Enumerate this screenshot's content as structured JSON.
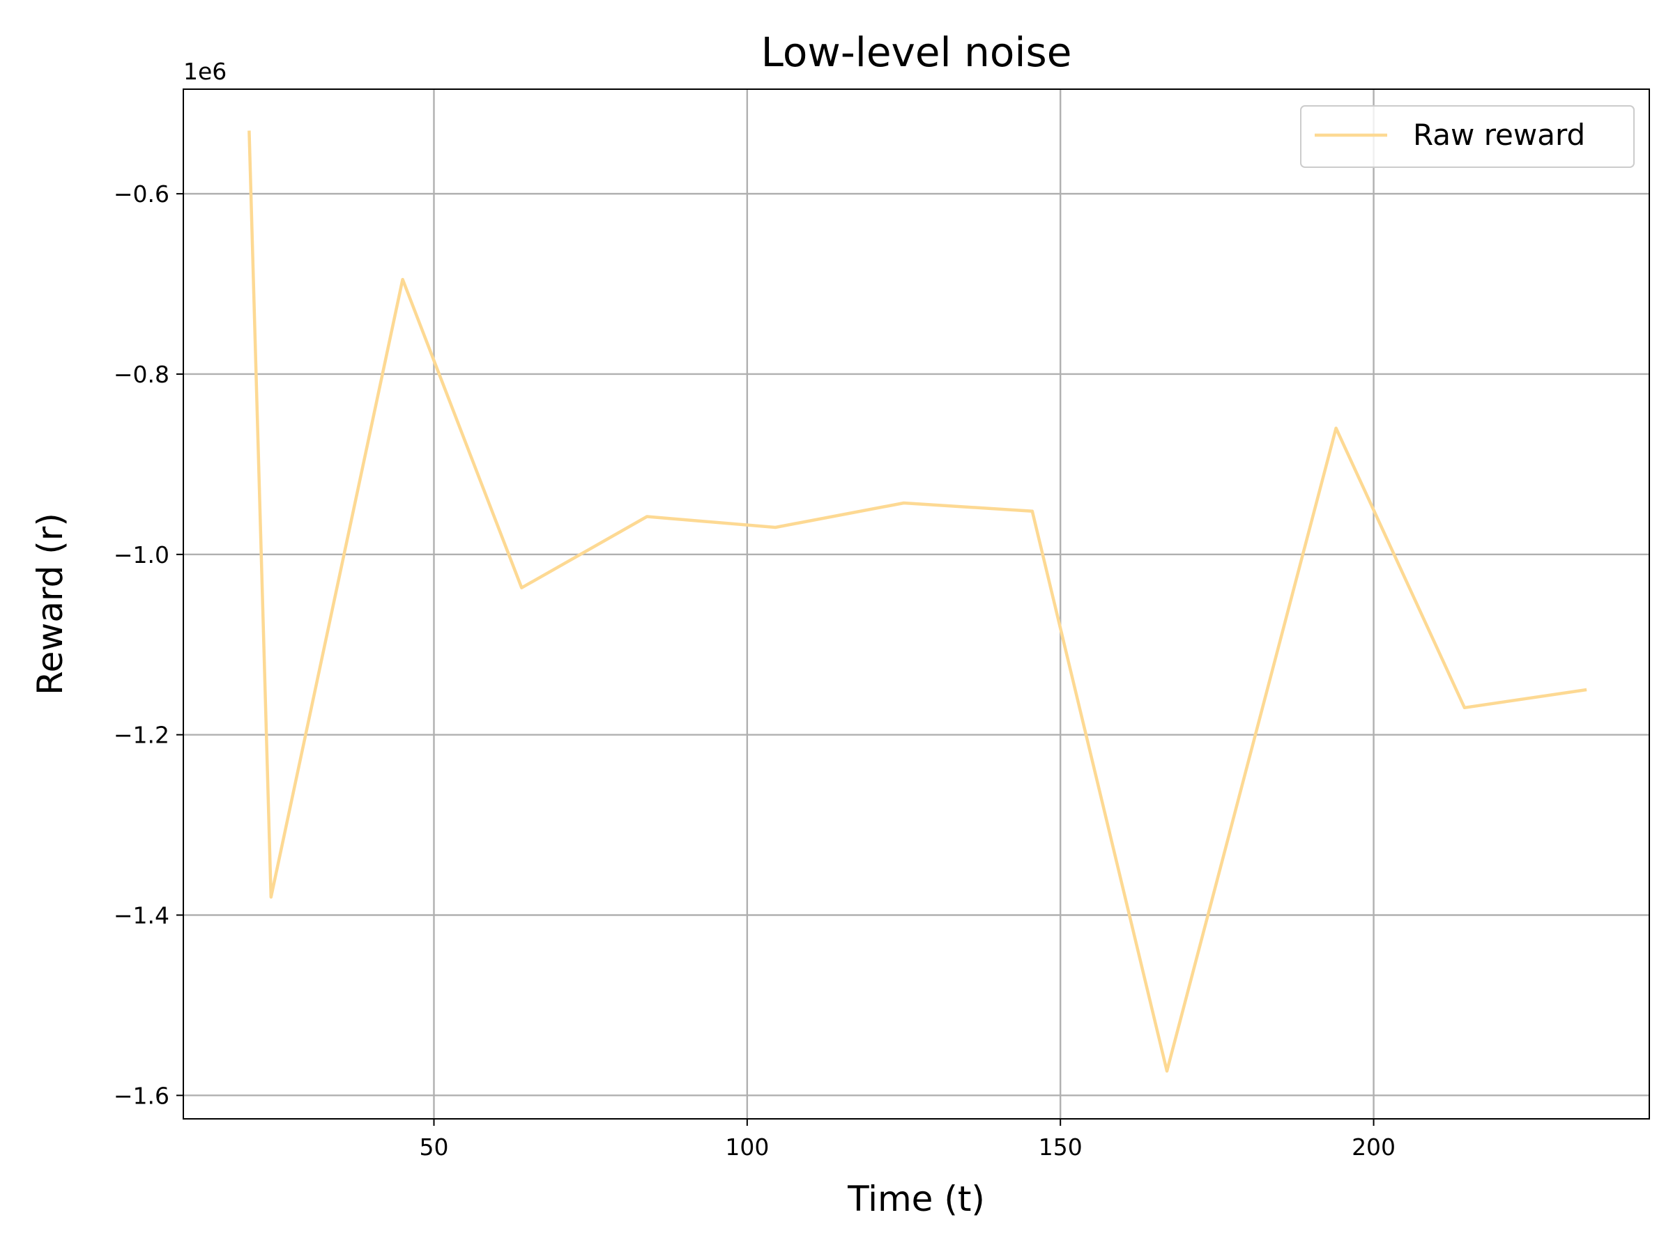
{
  "chart_data": {
    "type": "line",
    "title": "Low-level noise",
    "xlabel": "Time (t)",
    "ylabel": "Reward (r)",
    "y_offset_label": "1e6",
    "xlim": [
      10,
      244
    ],
    "ylim": [
      -1.626,
      -0.484
    ],
    "y_scale": 1000000,
    "grid": true,
    "legend_position": "upper right",
    "x_ticks": [
      {
        "value": 50,
        "label": "50"
      },
      {
        "value": 100,
        "label": "100"
      },
      {
        "value": 150,
        "label": "150"
      },
      {
        "value": 200,
        "label": "200"
      }
    ],
    "y_ticks": [
      {
        "value": -0.6,
        "label": "−0.6"
      },
      {
        "value": -0.8,
        "label": "−0.8"
      },
      {
        "value": -1.0,
        "label": "−1.0"
      },
      {
        "value": -1.2,
        "label": "−1.2"
      },
      {
        "value": -1.4,
        "label": "−1.4"
      },
      {
        "value": -1.6,
        "label": "−1.6"
      }
    ],
    "series": [
      {
        "name": "Raw reward",
        "color": "#fdd993",
        "x": [
          20.5,
          24,
          45,
          64,
          84,
          104.5,
          125,
          145.5,
          167,
          194,
          214.5,
          234
        ],
        "y": [
          -0.53,
          -1.38,
          -0.695,
          -1.037,
          -0.958,
          -0.97,
          -0.943,
          -0.952,
          -1.573,
          -0.86,
          -1.17,
          -1.15
        ]
      }
    ]
  }
}
